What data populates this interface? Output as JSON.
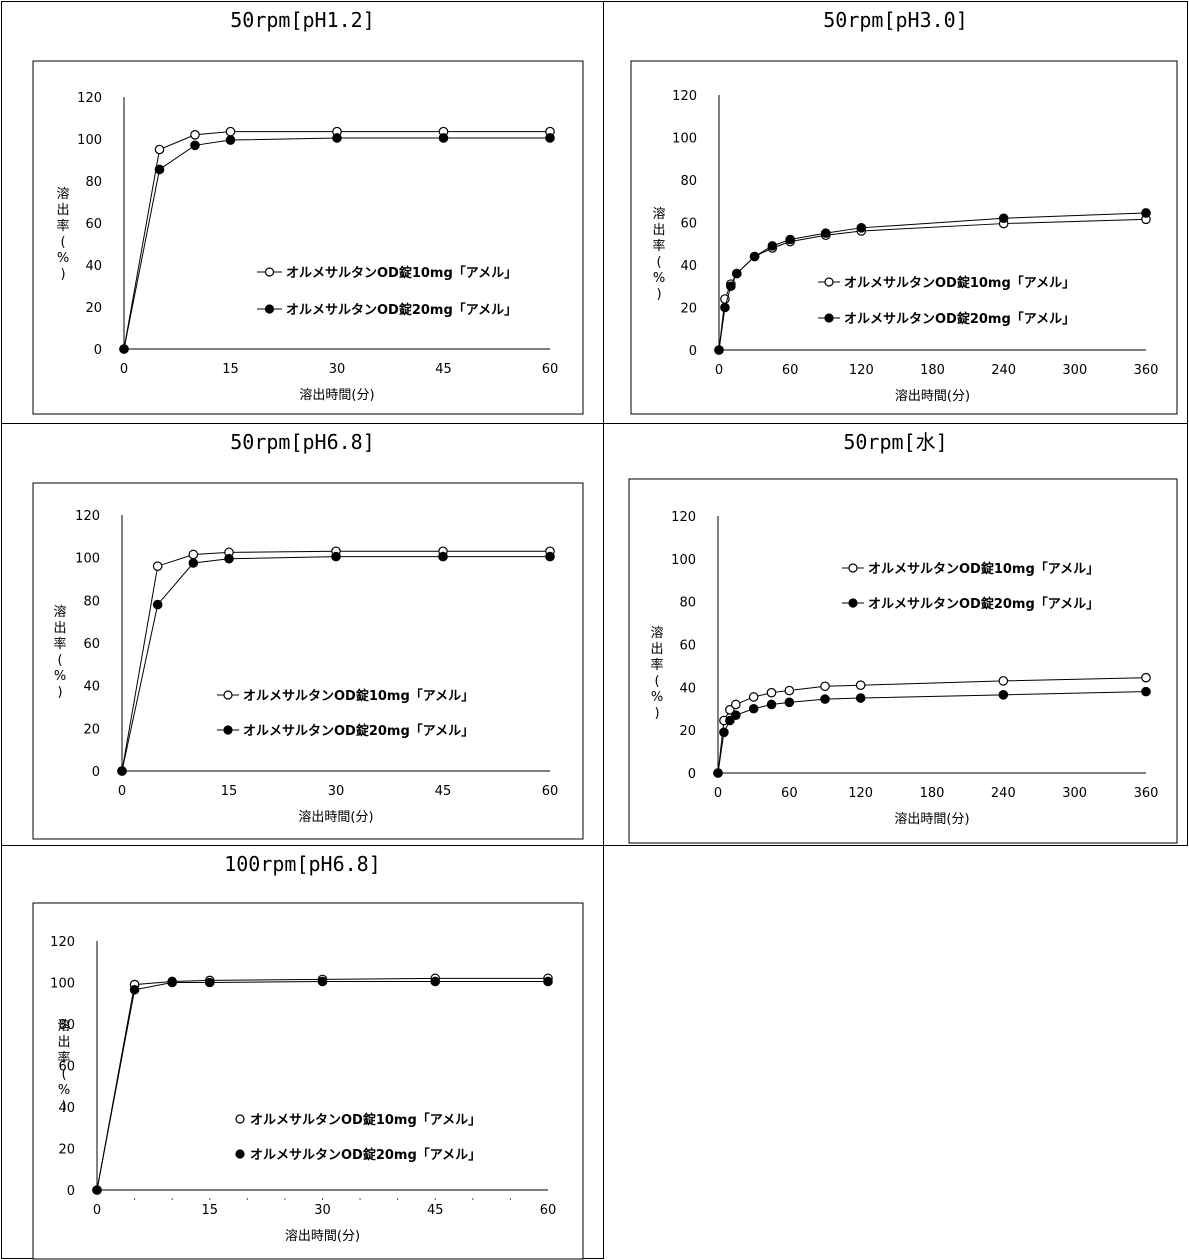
{
  "chart_data": [
    {
      "type": "line",
      "title": "50rpm[pH1.2]",
      "xlabel": "溶出時間(分)",
      "ylabel": "溶出率(%)",
      "x": [
        0,
        5,
        10,
        15,
        30,
        45,
        60
      ],
      "xticks": [
        0,
        15,
        30,
        45,
        60
      ],
      "xlim": [
        0,
        60
      ],
      "ylim": [
        0,
        120
      ],
      "yticks": [
        0,
        20,
        40,
        60,
        80,
        100,
        120
      ],
      "legend_position": "center-right",
      "series": [
        {
          "name": "オルメサルタンOD錠10mg「アメル」",
          "marker": "open-circle",
          "values": [
            0,
            95,
            102,
            103.5,
            103.5,
            103.5,
            103.5
          ]
        },
        {
          "name": "オルメサルタンOD錠20mg「アメル」",
          "marker": "filled-circle",
          "values": [
            0,
            85.5,
            97,
            99.5,
            100.5,
            100.5,
            100.5
          ]
        }
      ]
    },
    {
      "type": "line",
      "title": "50rpm[pH3.0]",
      "xlabel": "溶出時間(分)",
      "ylabel": "溶出率(%)",
      "x": [
        0,
        5,
        10,
        15,
        30,
        45,
        60,
        90,
        120,
        240,
        360
      ],
      "xticks": [
        0,
        60,
        120,
        180,
        240,
        300,
        360
      ],
      "xlim": [
        0,
        360
      ],
      "ylim": [
        0,
        120
      ],
      "yticks": [
        0,
        20,
        40,
        60,
        80,
        100,
        120
      ],
      "legend_position": "lower-right",
      "series": [
        {
          "name": "オルメサルタンOD錠10mg「アメル」",
          "marker": "open-circle",
          "values": [
            0,
            24,
            31,
            36,
            44,
            48,
            51,
            54,
            56,
            59.5,
            61.5
          ]
        },
        {
          "name": "オルメサルタンOD錠20mg「アメル」",
          "marker": "filled-circle",
          "values": [
            0,
            20,
            30,
            36,
            44,
            49,
            52,
            55,
            57.5,
            62,
            64.5
          ]
        }
      ]
    },
    {
      "type": "line",
      "title": "50rpm[pH6.8]",
      "xlabel": "溶出時間(分)",
      "ylabel": "溶出率(%)",
      "x": [
        0,
        5,
        10,
        15,
        30,
        45,
        60
      ],
      "xticks": [
        0,
        15,
        30,
        45,
        60
      ],
      "xlim": [
        0,
        60
      ],
      "ylim": [
        0,
        120
      ],
      "yticks": [
        0,
        20,
        40,
        60,
        80,
        100,
        120
      ],
      "legend_position": "lower-right",
      "series": [
        {
          "name": "オルメサルタンOD錠10mg「アメル」",
          "marker": "open-circle",
          "values": [
            0,
            96,
            101.5,
            102.5,
            103,
            103,
            103
          ]
        },
        {
          "name": "オルメサルタンOD錠20mg「アメル」",
          "marker": "filled-circle",
          "values": [
            0,
            78,
            97.5,
            99.5,
            100.5,
            100.5,
            100.5
          ]
        }
      ]
    },
    {
      "type": "line",
      "title": "50rpm[水]",
      "xlabel": "溶出時間(分)",
      "ylabel": "溶出率(%)",
      "x": [
        0,
        5,
        10,
        15,
        30,
        45,
        60,
        90,
        120,
        240,
        360
      ],
      "xticks": [
        0,
        60,
        120,
        180,
        240,
        300,
        360
      ],
      "xlim": [
        0,
        360
      ],
      "ylim": [
        0,
        120
      ],
      "yticks": [
        0,
        20,
        40,
        60,
        80,
        100,
        120
      ],
      "legend_position": "top-right",
      "series": [
        {
          "name": "オルメサルタンOD錠10mg「アメル」",
          "marker": "open-circle",
          "values": [
            0,
            24.5,
            29.5,
            32,
            35.5,
            37.5,
            38.5,
            40.5,
            41,
            43,
            44.5
          ]
        },
        {
          "name": "オルメサルタンOD錠20mg「アメル」",
          "marker": "filled-circle",
          "values": [
            0,
            19,
            24.5,
            27,
            30,
            32,
            33,
            34.5,
            35,
            36.5,
            38
          ]
        }
      ]
    },
    {
      "type": "line",
      "title": "100rpm[pH6.8]",
      "xlabel": "溶出時間(分)",
      "ylabel": "溶出率(%)",
      "x": [
        0,
        5,
        10,
        15,
        30,
        45,
        60
      ],
      "xticks": [
        0,
        15,
        30,
        45,
        60
      ],
      "xlim": [
        0,
        60
      ],
      "ylim": [
        0,
        120
      ],
      "yticks": [
        0,
        20,
        40,
        60,
        80,
        100,
        120
      ],
      "legend_position": "lower-center",
      "series": [
        {
          "name": "オルメサルタンOD錠10mg「アメル」",
          "marker": "open-circle",
          "values": [
            0,
            99,
            100.5,
            101,
            101.5,
            102,
            102
          ]
        },
        {
          "name": "オルメサルタンOD錠20mg「アメル」",
          "marker": "filled-circle",
          "values": [
            0,
            96.5,
            100,
            100,
            100.5,
            100.5,
            100.5
          ]
        }
      ]
    }
  ]
}
